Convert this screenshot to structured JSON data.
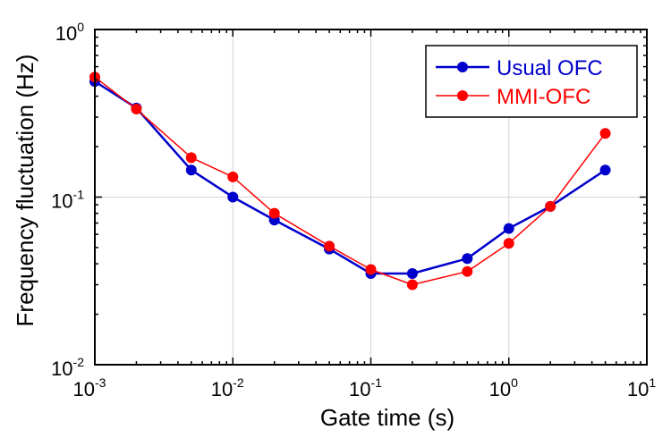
{
  "chart_data": {
    "type": "line",
    "xlabel": "Gate time (s)",
    "ylabel": "Frequency fluctuation (Hz)",
    "xscale": "log",
    "yscale": "log",
    "xlim": [
      0.001,
      10
    ],
    "ylim": [
      0.01,
      1
    ],
    "grid": true,
    "legend_position": "top-right",
    "x_ticks": [
      {
        "base": "10",
        "exp": "-3",
        "value": 0.001
      },
      {
        "base": "10",
        "exp": "-2",
        "value": 0.01
      },
      {
        "base": "10",
        "exp": "-1",
        "value": 0.1
      },
      {
        "base": "10",
        "exp": "0",
        "value": 1
      },
      {
        "base": "10",
        "exp": "1",
        "value": 10
      }
    ],
    "y_ticks": [
      {
        "base": "10",
        "exp": "-2",
        "value": 0.01
      },
      {
        "base": "10",
        "exp": "-1",
        "value": 0.1
      },
      {
        "base": "10",
        "exp": "0",
        "value": 1
      }
    ],
    "series": [
      {
        "name": "Usual OFC",
        "color": "#0000cc",
        "x": [
          0.001,
          0.002,
          0.005,
          0.01,
          0.02,
          0.05,
          0.1,
          0.2,
          0.5,
          1,
          2,
          5
        ],
        "y": [
          0.49,
          0.34,
          0.145,
          0.1,
          0.073,
          0.049,
          0.035,
          0.035,
          0.043,
          0.065,
          0.088,
          0.145
        ]
      },
      {
        "name": "MMI-OFC",
        "color": "#ff0000",
        "x": [
          0.001,
          0.002,
          0.005,
          0.01,
          0.02,
          0.05,
          0.1,
          0.2,
          0.5,
          1,
          2,
          5
        ],
        "y": [
          0.52,
          0.335,
          0.172,
          0.132,
          0.08,
          0.051,
          0.037,
          0.03,
          0.036,
          0.053,
          0.088,
          0.24
        ]
      }
    ]
  }
}
